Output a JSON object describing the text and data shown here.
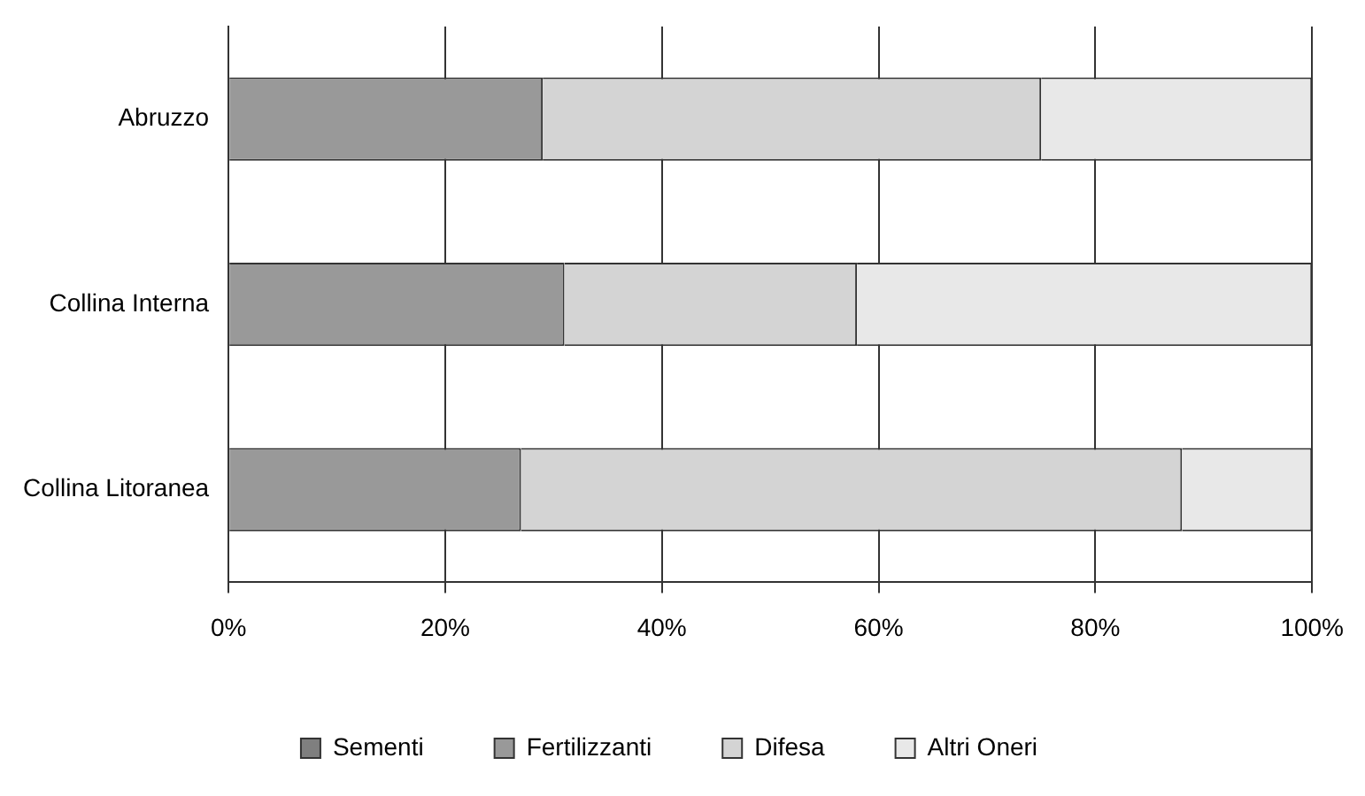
{
  "chart_data": {
    "type": "bar",
    "orientation": "horizontal",
    "stacked": true,
    "categories": [
      "Abruzzo",
      "Collina Interna",
      "Collina Litoranea"
    ],
    "series": [
      {
        "name": "Sementi",
        "color": "#7f7f7f",
        "values": [
          0,
          0,
          0
        ]
      },
      {
        "name": "Fertilizzanti",
        "color": "#999999",
        "values": [
          29,
          31,
          27
        ]
      },
      {
        "name": "Difesa",
        "color": "#d4d4d4",
        "values": [
          46,
          27,
          61
        ]
      },
      {
        "name": "Altri Oneri",
        "color": "#e8e8e8",
        "values": [
          25,
          42,
          12
        ]
      }
    ],
    "xlim": [
      0,
      100
    ],
    "xticks": [
      {
        "value": 0,
        "label": "0%"
      },
      {
        "value": 20,
        "label": "20%"
      },
      {
        "value": 40,
        "label": "40%"
      },
      {
        "value": 60,
        "label": "60%"
      },
      {
        "value": 80,
        "label": "80%"
      },
      {
        "value": 100,
        "label": "100%"
      }
    ],
    "grid": "x",
    "legend": "bottom"
  }
}
